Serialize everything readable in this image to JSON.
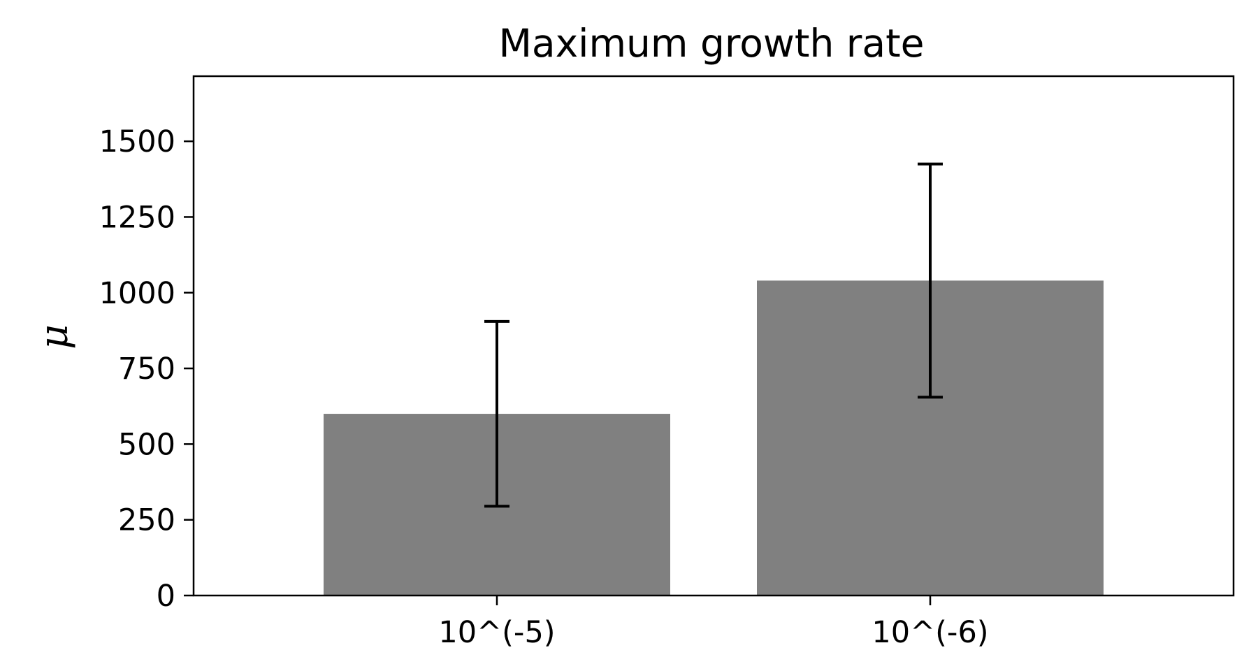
{
  "chart_data": {
    "type": "bar",
    "title": "Maximum growth rate",
    "xlabel": "",
    "ylabel": "μ",
    "categories": [
      "10^(-5)",
      "10^(-6)"
    ],
    "values": [
      600,
      1040
    ],
    "error_low": [
      295,
      655
    ],
    "error_high": [
      905,
      1425
    ],
    "ylim": [
      0,
      1715
    ],
    "yticks": [
      0,
      250,
      500,
      750,
      1000,
      1250,
      1500
    ],
    "grid": false,
    "bar_color": "#808080",
    "error_color": "#000000"
  }
}
